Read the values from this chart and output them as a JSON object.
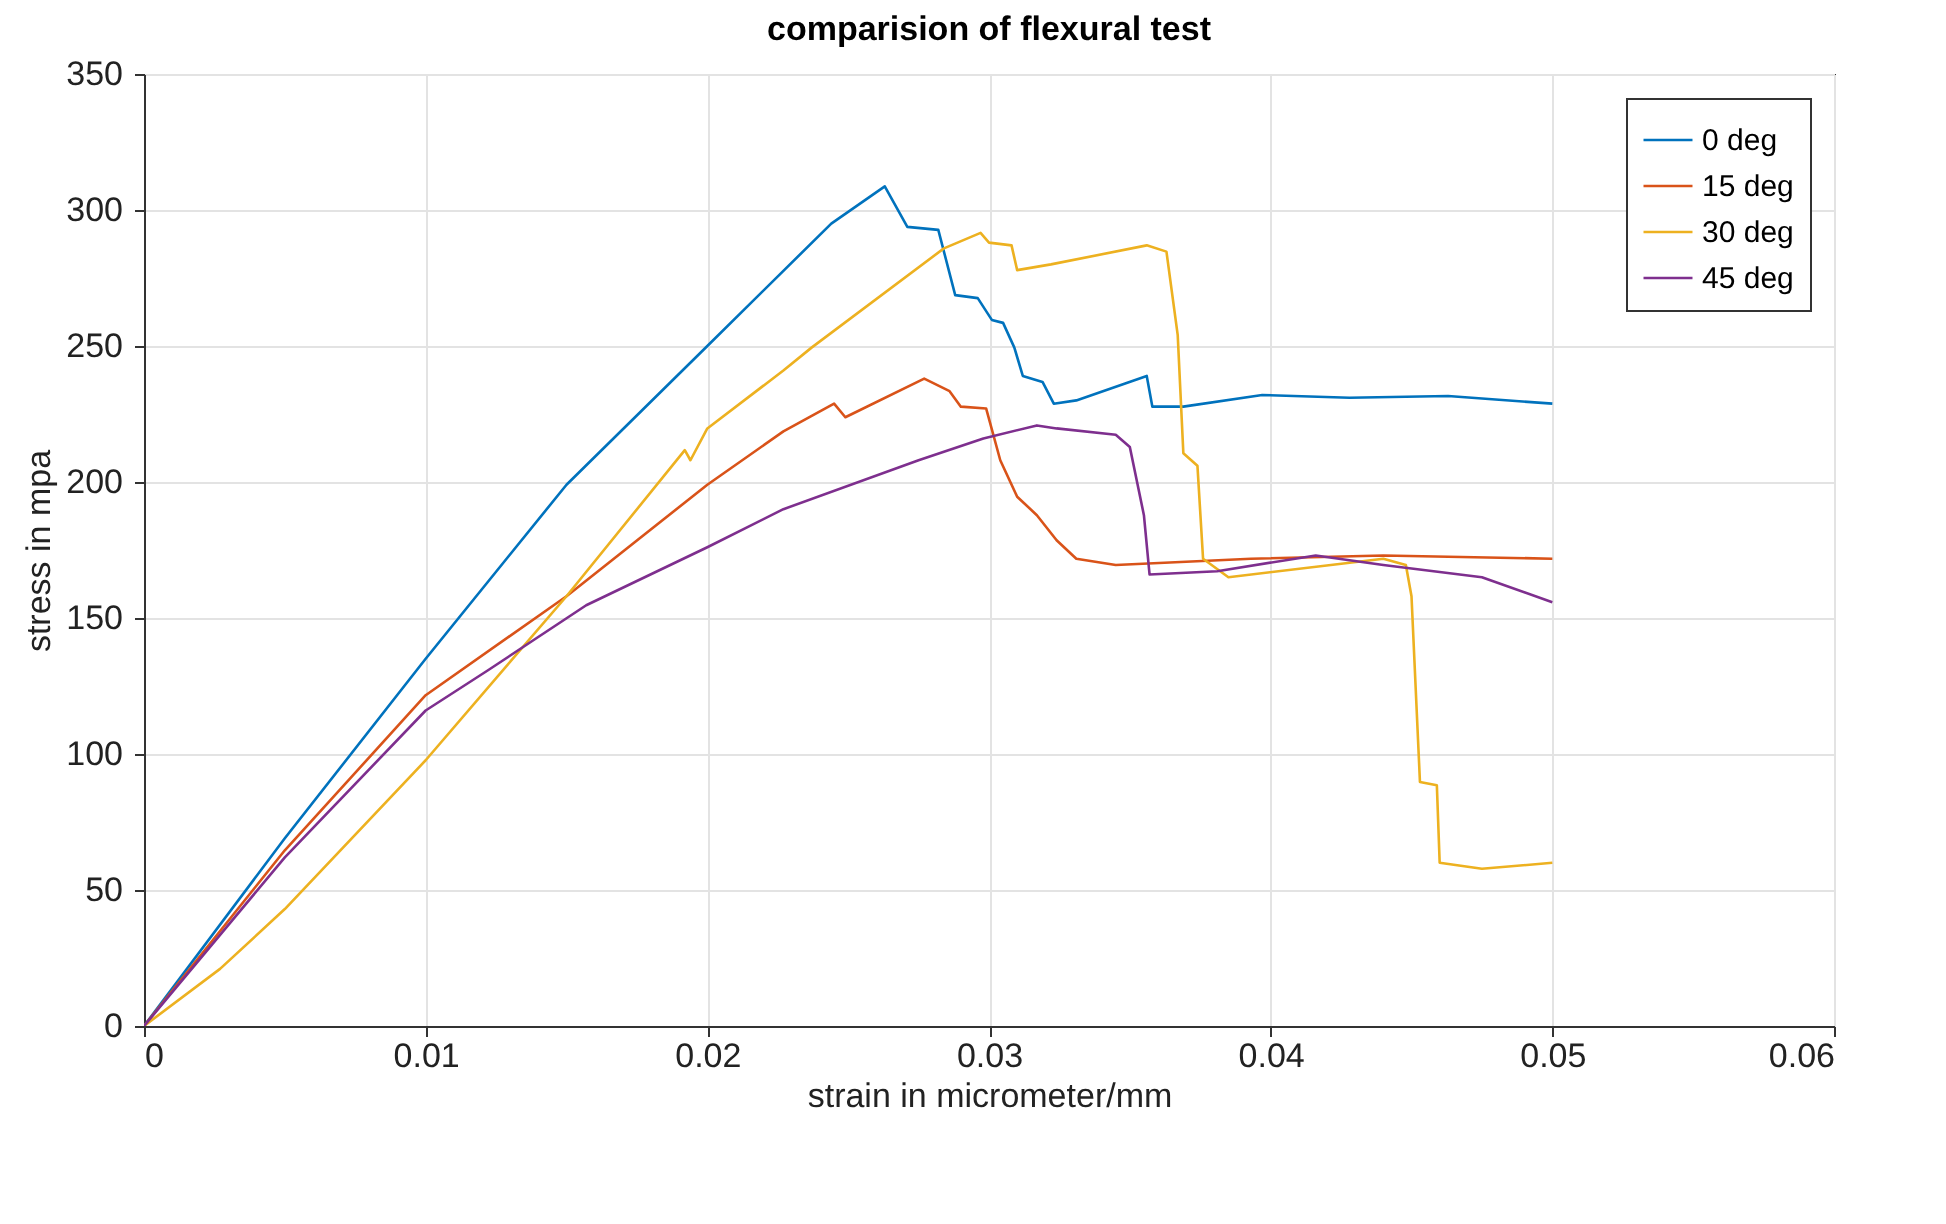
{
  "chart_data": {
    "type": "line",
    "title": "comparision of flexural test",
    "xlabel": "strain in micrometer/mm",
    "ylabel": "stress in mpa",
    "xlim": [
      0,
      0.06
    ],
    "xticks": [
      0,
      0.01,
      0.02,
      0.03,
      0.04,
      0.05,
      0.06
    ],
    "ylim": [
      0,
      350
    ],
    "yticks": [
      0,
      50,
      100,
      150,
      200,
      250,
      300,
      350
    ],
    "grid": true,
    "legend": "top right",
    "line_style": "solid",
    "marker": "none",
    "series": [
      {
        "name": "0 deg",
        "color": "#0072bd",
        "x": [
          0,
          0.005,
          0.01,
          0.015,
          0.02,
          0.0244,
          0.0263,
          0.0271,
          0.0282,
          0.0288,
          0.0296,
          0.0301,
          0.0305,
          0.0309,
          0.0312,
          0.0319,
          0.0323,
          0.0331,
          0.0356,
          0.0358,
          0.0369,
          0.0397,
          0.0428,
          0.0463,
          0.05
        ],
        "values": [
          0,
          69,
          135,
          199,
          250,
          295,
          308.7,
          293.8,
          292.7,
          268.7,
          267.6,
          259.6,
          258.5,
          249.4,
          239,
          236.8,
          228.8,
          230,
          239,
          227.7,
          227.7,
          232,
          231,
          231.6,
          228.8
        ]
      },
      {
        "name": "15 deg",
        "color": "#d95319",
        "x": [
          0,
          0.005,
          0.01,
          0.015,
          0.02,
          0.0227,
          0.0245,
          0.0249,
          0.0277,
          0.0286,
          0.029,
          0.0299,
          0.0304,
          0.031,
          0.0317,
          0.0324,
          0.0331,
          0.0345,
          0.0393,
          0.044,
          0.05
        ],
        "values": [
          0,
          64.6,
          121.6,
          158,
          199,
          218.6,
          228.8,
          223.8,
          238,
          233.4,
          227.7,
          227,
          208,
          194.6,
          187.8,
          178.6,
          171.8,
          169.5,
          171.8,
          173,
          171.8
        ]
      },
      {
        "name": "30 deg",
        "color": "#edb120",
        "x": [
          0,
          0.0027,
          0.005,
          0.01,
          0.015,
          0.0192,
          0.0194,
          0.02,
          0.0227,
          0.0237,
          0.0284,
          0.0297,
          0.03,
          0.0308,
          0.031,
          0.0322,
          0.0356,
          0.0363,
          0.0367,
          0.0369,
          0.0374,
          0.0376,
          0.0385,
          0.044,
          0.0448,
          0.045,
          0.0453,
          0.0459,
          0.046,
          0.0475,
          0.05
        ],
        "values": [
          0,
          21,
          43,
          97.7,
          158,
          211.7,
          208,
          219.7,
          241,
          249.4,
          285.9,
          291.6,
          288,
          287,
          277.9,
          280,
          287,
          284.7,
          254,
          210.6,
          206,
          171.8,
          165,
          171.8,
          169.5,
          158,
          89.7,
          88.5,
          60,
          57.8,
          60
        ]
      },
      {
        "name": "45 deg",
        "color": "#7e2f8e",
        "x": [
          0,
          0.005,
          0.01,
          0.0122,
          0.0157,
          0.02,
          0.0227,
          0.0275,
          0.0298,
          0.0317,
          0.0324,
          0.0345,
          0.035,
          0.0355,
          0.0357,
          0.0381,
          0.0416,
          0.044,
          0.0475,
          0.05
        ],
        "values": [
          0,
          62,
          116,
          130.7,
          154.7,
          176,
          190,
          208,
          216,
          220.8,
          219.7,
          217.4,
          212.9,
          187.8,
          166,
          167.2,
          173,
          169.5,
          165,
          155.8
        ]
      }
    ]
  }
}
